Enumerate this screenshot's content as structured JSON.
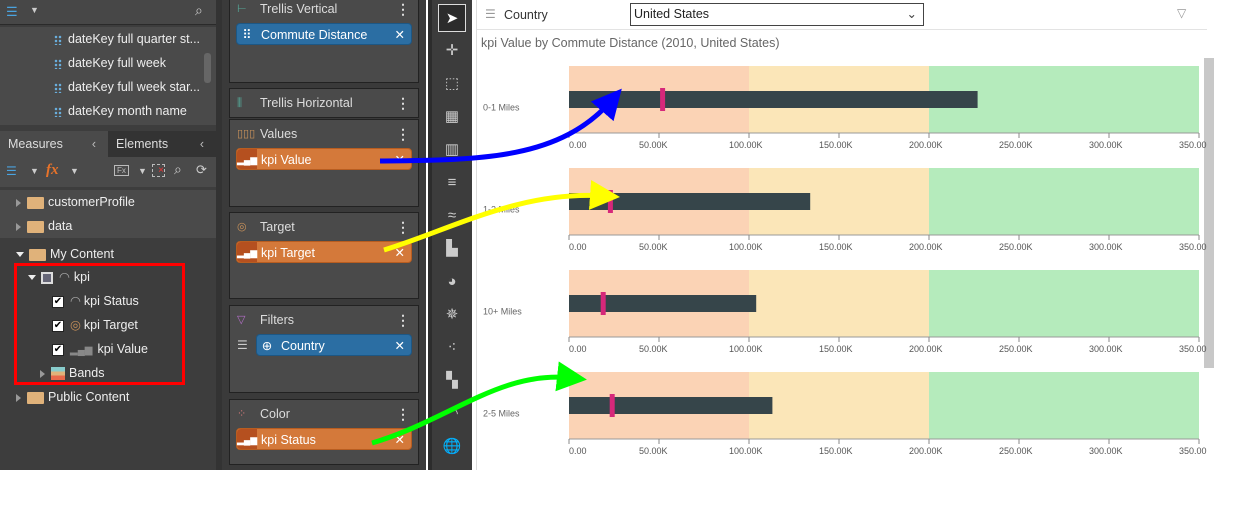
{
  "left_panel": {
    "fields": [
      {
        "label": "dateKey full quarter st...",
        "icon": "hierarchy-dots-icon"
      },
      {
        "label": "dateKey full week",
        "icon": "hierarchy-dots-icon"
      },
      {
        "label": "dateKey full week star...",
        "icon": "hierarchy-dots-icon"
      },
      {
        "label": "dateKey month name",
        "icon": "time-dots-icon"
      }
    ],
    "tabs": [
      {
        "label": "Measures",
        "active": true
      },
      {
        "label": "Elements",
        "active": false
      }
    ],
    "tree": {
      "folders": [
        "customerProfile",
        "data"
      ],
      "my_content": "My Content",
      "kpi": "kpi",
      "kpi_items": [
        {
          "label": "kpi Status",
          "checked": true,
          "icon": "gauge-icon"
        },
        {
          "label": "kpi Target",
          "checked": true,
          "icon": "target-icon"
        },
        {
          "label": "kpi Value",
          "checked": true,
          "icon": "bar-icon"
        }
      ],
      "bands": "Bands",
      "public_content": "Public Content"
    }
  },
  "drop_zones": [
    {
      "title": "Trellis Vertical",
      "pills": [
        {
          "label": "Commute Distance",
          "color": "blue"
        }
      ]
    },
    {
      "title": "Trellis Horizontal",
      "pills": []
    },
    {
      "title": "Values",
      "pills": [
        {
          "label": "kpi Value",
          "color": "orange"
        }
      ]
    },
    {
      "title": "Target",
      "pills": [
        {
          "label": "kpi Target",
          "color": "orange"
        }
      ]
    },
    {
      "title": "Filters",
      "pills": [
        {
          "label": "Country",
          "color": "blue"
        }
      ]
    },
    {
      "title": "Color",
      "pills": [
        {
          "label": "kpi Status",
          "color": "orange"
        }
      ]
    }
  ],
  "filter_bar": {
    "label": "Country",
    "value": "United States"
  },
  "chart_data": {
    "type": "bar",
    "subtype": "bullet",
    "title": "kpi Value by Commute Distance (2010, United States)",
    "orientation": "horizontal",
    "xlim": [
      0,
      350000
    ],
    "ticks": [
      "0.00",
      "50.00K",
      "100.00K",
      "150.00K",
      "200.00K",
      "250.00K",
      "300.00K",
      "350.00K"
    ],
    "bands": [
      {
        "from": 0,
        "to": 100000,
        "color": "#fbd3b5"
      },
      {
        "from": 100000,
        "to": 200000,
        "color": "#fbe6b8"
      },
      {
        "from": 200000,
        "to": 350000,
        "color": "#b5ebbc"
      }
    ],
    "categories": [
      "0-1 Miles",
      "1-2 Miles",
      "10+ Miles",
      "2-5 Miles"
    ],
    "series": [
      {
        "name": "kpi Value",
        "values": [
          227000,
          134000,
          104000,
          113000
        ],
        "color": "#36454a"
      },
      {
        "name": "kpi Target",
        "values": [
          52000,
          23000,
          19000,
          24000
        ],
        "color": "#d6287a"
      }
    ]
  },
  "colors": {
    "accent_orange": "#d4793a",
    "pill_blue": "#2b6ea3",
    "highlight_box": "#ff0000"
  }
}
